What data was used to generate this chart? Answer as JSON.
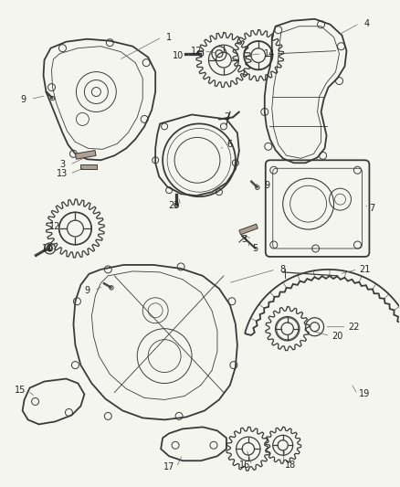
{
  "bg_color": "#f5f5f0",
  "fig_width": 4.38,
  "fig_height": 5.33,
  "dpi": 100,
  "line_color": "#3a3a3a",
  "text_color": "#222222",
  "label_fontsize": 7.0
}
